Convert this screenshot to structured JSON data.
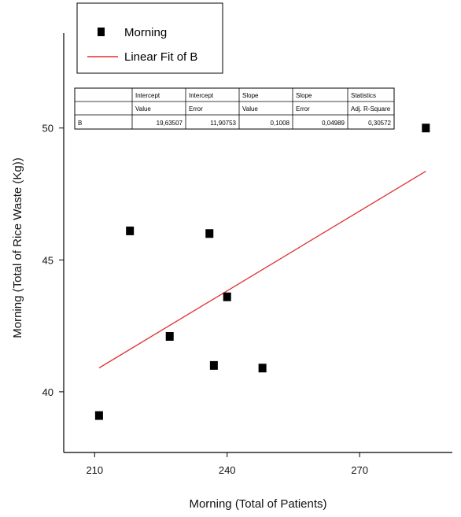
{
  "chart_data": {
    "type": "scatter",
    "xlabel": "Morning (Total of Patients)",
    "ylabel": "Morning (Total of Rice Waste (Kg))",
    "xlim": [
      203,
      291
    ],
    "ylim": [
      37.7,
      53.6
    ],
    "x_ticks": [
      210,
      240,
      270
    ],
    "y_ticks": [
      40,
      45,
      50
    ],
    "x_tick_labels": [
      "210",
      "240",
      "270"
    ],
    "y_tick_labels": [
      "40",
      "45",
      "50"
    ],
    "legend_position": "top-left",
    "grid": false,
    "series": [
      {
        "name": "Morning",
        "marker": "square",
        "color": "#000000",
        "points": [
          {
            "x": 211,
            "y": 39.1
          },
          {
            "x": 218,
            "y": 46.1
          },
          {
            "x": 227,
            "y": 42.1
          },
          {
            "x": 236,
            "y": 46.0
          },
          {
            "x": 237,
            "y": 41.0
          },
          {
            "x": 240,
            "y": 43.6
          },
          {
            "x": 248,
            "y": 40.9
          },
          {
            "x": 285,
            "y": 50.0
          }
        ]
      },
      {
        "name": "Linear Fit of B",
        "type": "line",
        "color": "#e03030",
        "intercept": 19.63507,
        "slope": 0.1008,
        "x_range": [
          211,
          285
        ]
      }
    ],
    "stats_table": {
      "header1": [
        "",
        "Intercept",
        "Intercept",
        "Slope",
        "Slope",
        "Statistics"
      ],
      "header2": [
        "",
        "Value",
        "Error",
        "Value",
        "Error",
        "Adj. R-Square"
      ],
      "row": [
        "B",
        "19,63507",
        "11,90753",
        "0,1008",
        "0,04989",
        "0,30572"
      ]
    }
  }
}
